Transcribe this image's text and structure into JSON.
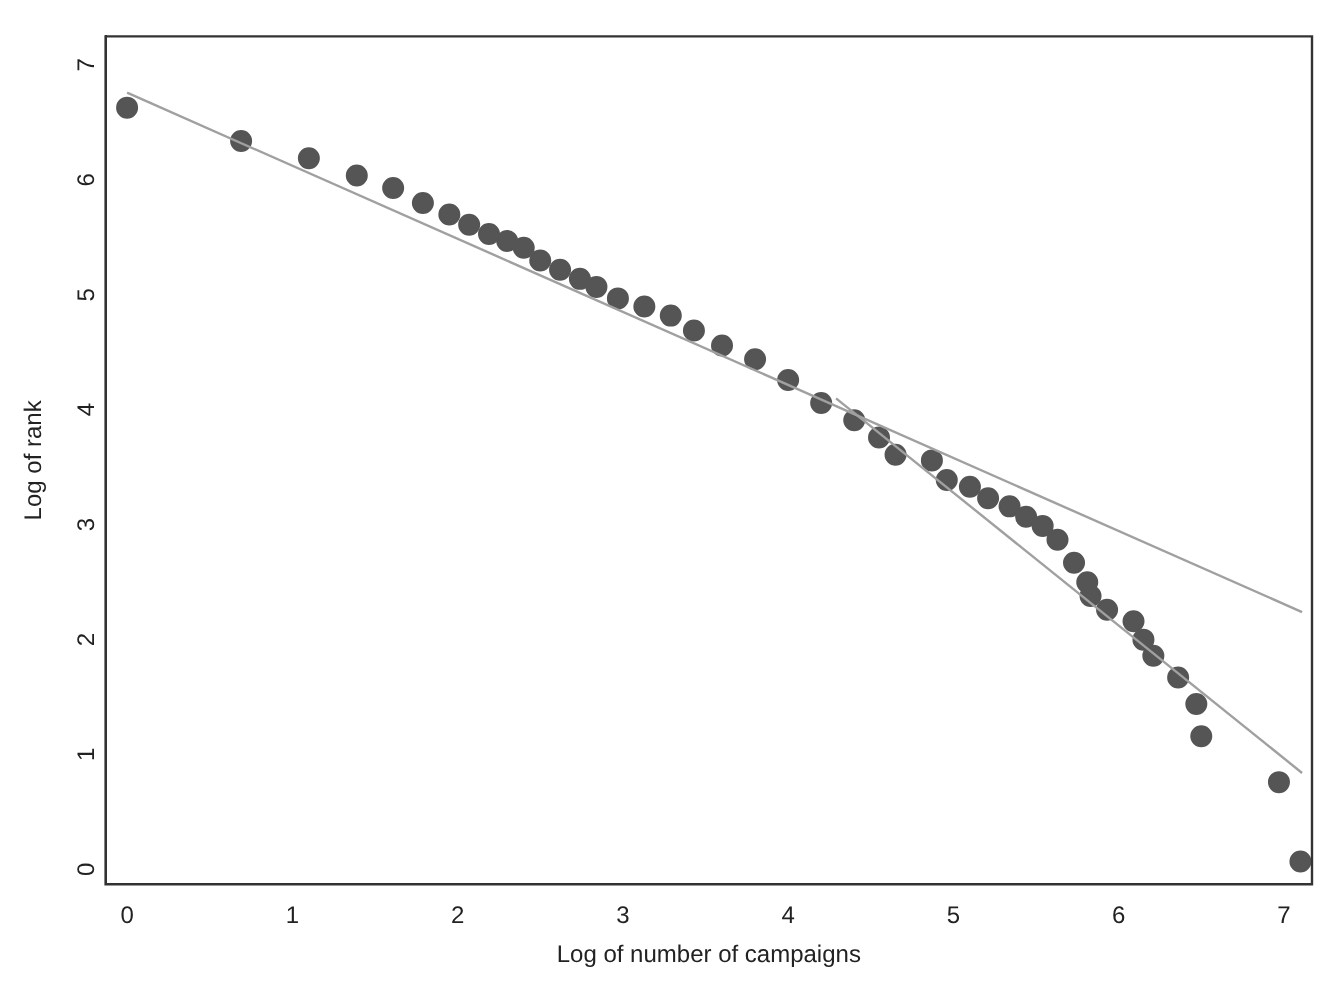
{
  "chart_data": {
    "type": "scatter",
    "xlabel": "Log of number of campaigns",
    "ylabel": "Log of rank",
    "xlim": [
      -0.13,
      7.17
    ],
    "ylim": [
      -0.19,
      7.19
    ],
    "xticks": [
      0,
      1,
      2,
      3,
      4,
      5,
      6,
      7
    ],
    "yticks": [
      0,
      1,
      2,
      3,
      4,
      5,
      6,
      7
    ],
    "grid": false,
    "legend": false,
    "series": [
      {
        "marker": "circle",
        "color": "#555555",
        "x": [
          0,
          0.69,
          1.1,
          1.39,
          1.61,
          1.79,
          1.95,
          2.07,
          2.19,
          2.3,
          2.4,
          2.5,
          2.62,
          2.74,
          2.84,
          2.97,
          3.13,
          3.29,
          3.43,
          3.6,
          3.8,
          4.0,
          4.2,
          4.4,
          4.55,
          4.65,
          4.87,
          4.96,
          5.1,
          5.21,
          5.34,
          5.44,
          5.54,
          5.63,
          5.73,
          5.81,
          5.83,
          5.93,
          6.09,
          6.15,
          6.21,
          6.36,
          6.47,
          6.5,
          6.97,
          7.1
        ],
        "values": [
          6.57,
          6.28,
          6.13,
          5.98,
          5.87,
          5.74,
          5.64,
          5.55,
          5.47,
          5.41,
          5.35,
          5.24,
          5.16,
          5.08,
          5.01,
          4.91,
          4.84,
          4.76,
          4.63,
          4.5,
          4.38,
          4.2,
          4.0,
          3.85,
          3.7,
          3.55,
          3.5,
          3.33,
          3.27,
          3.17,
          3.1,
          3.01,
          2.93,
          2.81,
          2.61,
          2.44,
          2.32,
          2.2,
          2.1,
          1.94,
          1.8,
          1.61,
          1.38,
          1.1,
          0.7,
          0.01
        ]
      },
      {
        "type": "line",
        "color": "#a0a0a0",
        "line_style": "solid",
        "marker": "none",
        "x": [
          0,
          7.11
        ],
        "values": [
          6.7,
          2.18
        ]
      },
      {
        "type": "line",
        "color": "#a0a0a0",
        "line_style": "solid",
        "marker": "none",
        "x": [
          4.29,
          7.11
        ],
        "values": [
          4.04,
          0.78
        ]
      }
    ]
  }
}
